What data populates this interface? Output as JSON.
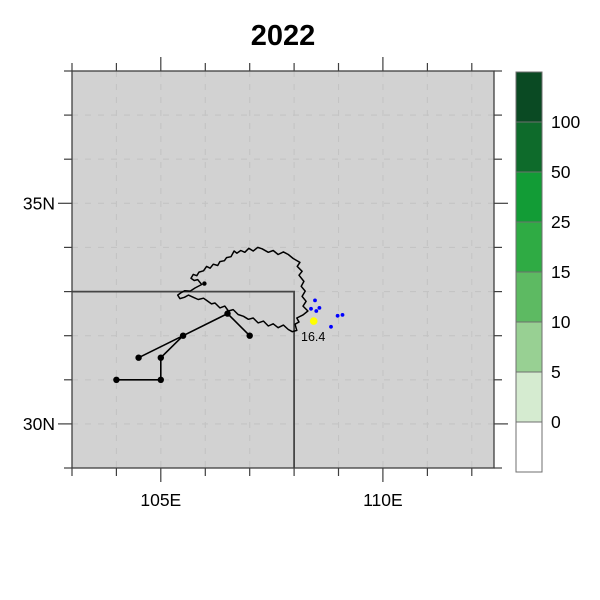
{
  "title": "2022",
  "colors": {
    "map_bg": "#d2d2d2",
    "frame": "#3f3f3f",
    "grid": "#c4c4c4",
    "boundary": "#000000",
    "track": "#000000",
    "station_dot": "#0000ff",
    "highlight_dot": "#ffff00",
    "box": "#464646",
    "text": "#000000",
    "colorbar_border": "#6f6f6f"
  },
  "chart_data": {
    "type": "map-scatter",
    "title": "2022",
    "extent": {
      "lon_min": 103,
      "lon_max": 112.5,
      "lat_min": 29,
      "lat_max": 38
    },
    "x_major_ticks": [
      {
        "lon": 105,
        "label": "105E"
      },
      {
        "lon": 110,
        "label": "110E"
      }
    ],
    "y_major_ticks": [
      {
        "lat": 30,
        "label": "30N"
      },
      {
        "lat": 35,
        "label": "35N"
      }
    ],
    "minor_tick_every_deg": 1,
    "grid": {
      "on": true,
      "every_deg": 1,
      "style": "dashed"
    },
    "subregion_box": {
      "lat": 33,
      "lon": 108
    },
    "track": {
      "points": [
        [
          104,
          31
        ],
        [
          105,
          31
        ],
        [
          105,
          31.5
        ],
        [
          104.5,
          31.5
        ],
        [
          105.5,
          32
        ],
        [
          106.5,
          32.5
        ],
        [
          107,
          32
        ]
      ],
      "segments": [
        [
          [
            104,
            31
          ],
          [
            105,
            31
          ]
        ],
        [
          [
            105,
            31
          ],
          [
            105,
            31.5
          ]
        ],
        [
          [
            105,
            31.5
          ],
          [
            105.5,
            32
          ]
        ],
        [
          [
            104.5,
            31.5
          ],
          [
            105.5,
            32
          ]
        ],
        [
          [
            105.5,
            32
          ],
          [
            106.5,
            32.5
          ]
        ],
        [
          [
            106.5,
            32.5
          ],
          [
            107,
            32
          ]
        ]
      ],
      "extra_point": [
        105.98,
        33.18
      ]
    },
    "stations": [
      [
        108.47,
        32.8
      ],
      [
        108.38,
        32.61
      ],
      [
        108.5,
        32.56
      ],
      [
        108.57,
        32.63
      ],
      [
        108.98,
        32.45
      ],
      [
        109.09,
        32.47
      ],
      [
        108.83,
        32.2
      ]
    ],
    "highlight": {
      "lon": 108.44,
      "lat": 32.33,
      "label": "16.4"
    },
    "boundary": [
      [
        105.92,
        33.16
      ],
      [
        105.77,
        33.08
      ],
      [
        105.66,
        33.01
      ],
      [
        105.54,
        33.02
      ],
      [
        105.45,
        32.97
      ],
      [
        105.38,
        32.92
      ],
      [
        105.43,
        32.84
      ],
      [
        105.53,
        32.87
      ],
      [
        105.62,
        32.92
      ],
      [
        105.73,
        32.87
      ],
      [
        105.84,
        32.82
      ],
      [
        105.96,
        32.85
      ],
      [
        106.03,
        32.8
      ],
      [
        106.14,
        32.72
      ],
      [
        106.22,
        32.74
      ],
      [
        106.33,
        32.63
      ],
      [
        106.44,
        32.67
      ],
      [
        106.52,
        32.56
      ],
      [
        106.63,
        32.59
      ],
      [
        106.74,
        32.48
      ],
      [
        106.86,
        32.44
      ],
      [
        106.97,
        32.37
      ],
      [
        107.08,
        32.4
      ],
      [
        107.19,
        32.29
      ],
      [
        107.31,
        32.33
      ],
      [
        107.42,
        32.22
      ],
      [
        107.53,
        32.27
      ],
      [
        107.64,
        32.18
      ],
      [
        107.76,
        32.24
      ],
      [
        107.87,
        32.14
      ],
      [
        107.96,
        32.09
      ],
      [
        108.06,
        32.12
      ],
      [
        108.02,
        32.26
      ],
      [
        108.11,
        32.31
      ],
      [
        108.06,
        32.4
      ],
      [
        108.2,
        32.47
      ],
      [
        108.31,
        32.56
      ],
      [
        108.2,
        32.67
      ],
      [
        108.27,
        32.78
      ],
      [
        108.18,
        32.89
      ],
      [
        108.25,
        33.01
      ],
      [
        108.16,
        33.12
      ],
      [
        108.22,
        33.23
      ],
      [
        108.11,
        33.37
      ],
      [
        108.18,
        33.46
      ],
      [
        108.07,
        33.57
      ],
      [
        108.13,
        33.66
      ],
      [
        107.98,
        33.75
      ],
      [
        107.87,
        33.84
      ],
      [
        107.76,
        33.9
      ],
      [
        107.64,
        33.84
      ],
      [
        107.53,
        33.93
      ],
      [
        107.42,
        33.89
      ],
      [
        107.28,
        33.97
      ],
      [
        107.18,
        34.0
      ],
      [
        107.08,
        33.92
      ],
      [
        106.98,
        33.98
      ],
      [
        106.89,
        33.89
      ],
      [
        106.8,
        33.93
      ],
      [
        106.71,
        33.87
      ],
      [
        106.65,
        33.92
      ],
      [
        106.58,
        33.79
      ],
      [
        106.48,
        33.77
      ],
      [
        106.43,
        33.7
      ],
      [
        106.33,
        33.68
      ],
      [
        106.28,
        33.59
      ],
      [
        106.18,
        33.62
      ],
      [
        106.11,
        33.53
      ],
      [
        106.03,
        33.57
      ],
      [
        105.96,
        33.47
      ],
      [
        105.86,
        33.44
      ],
      [
        105.81,
        33.36
      ],
      [
        105.73,
        33.39
      ],
      [
        105.68,
        33.3
      ],
      [
        105.75,
        33.25
      ],
      [
        105.83,
        33.27
      ],
      [
        105.88,
        33.21
      ]
    ],
    "colorbar": {
      "position": "right",
      "levels": [
        0,
        5,
        10,
        15,
        25,
        50,
        100
      ],
      "colors_bottom_to_top": [
        "#ffffff",
        "#d5ebd0",
        "#98d093",
        "#5dba62",
        "#2fab44",
        "#129c36",
        "#0e6b2b",
        "#0a4a23"
      ]
    }
  }
}
